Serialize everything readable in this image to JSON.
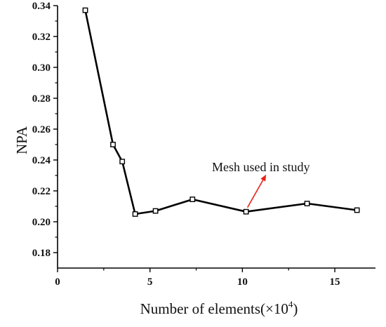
{
  "chart_data": {
    "type": "line",
    "title": "",
    "xlabel": "Number of elements(×10",
    "xlabel_superscript": "4",
    "xlabel_suffix": ")",
    "ylabel": "NPA",
    "xlim": [
      0,
      17.2
    ],
    "ylim": [
      0.17,
      0.34
    ],
    "xticks": [
      0,
      5,
      10,
      15
    ],
    "yticks": [
      0.18,
      0.2,
      0.22,
      0.24,
      0.26,
      0.28,
      0.3,
      0.32,
      0.34
    ],
    "ytick_labels": [
      "0.18",
      "0.20",
      "0.22",
      "0.24",
      "0.26",
      "0.28",
      "0.30",
      "0.32",
      "0.34"
    ],
    "xtick_labels": [
      "0",
      "5",
      "10",
      "15"
    ],
    "grid": false,
    "legend": "none",
    "series": [
      {
        "marker": "hollow-square",
        "color": "#000000",
        "x": [
          1.5,
          3.0,
          3.5,
          4.2,
          5.3,
          7.3,
          10.2,
          13.5,
          16.2
        ],
        "y": [
          0.337,
          0.25,
          0.239,
          0.205,
          0.207,
          0.2145,
          0.2065,
          0.2118,
          0.2075
        ]
      }
    ],
    "annotations": [
      {
        "text": "Mesh used in study",
        "arrow_color": "#e8231c",
        "points_to": {
          "x": 10.2,
          "y": 0.2065
        }
      }
    ]
  }
}
